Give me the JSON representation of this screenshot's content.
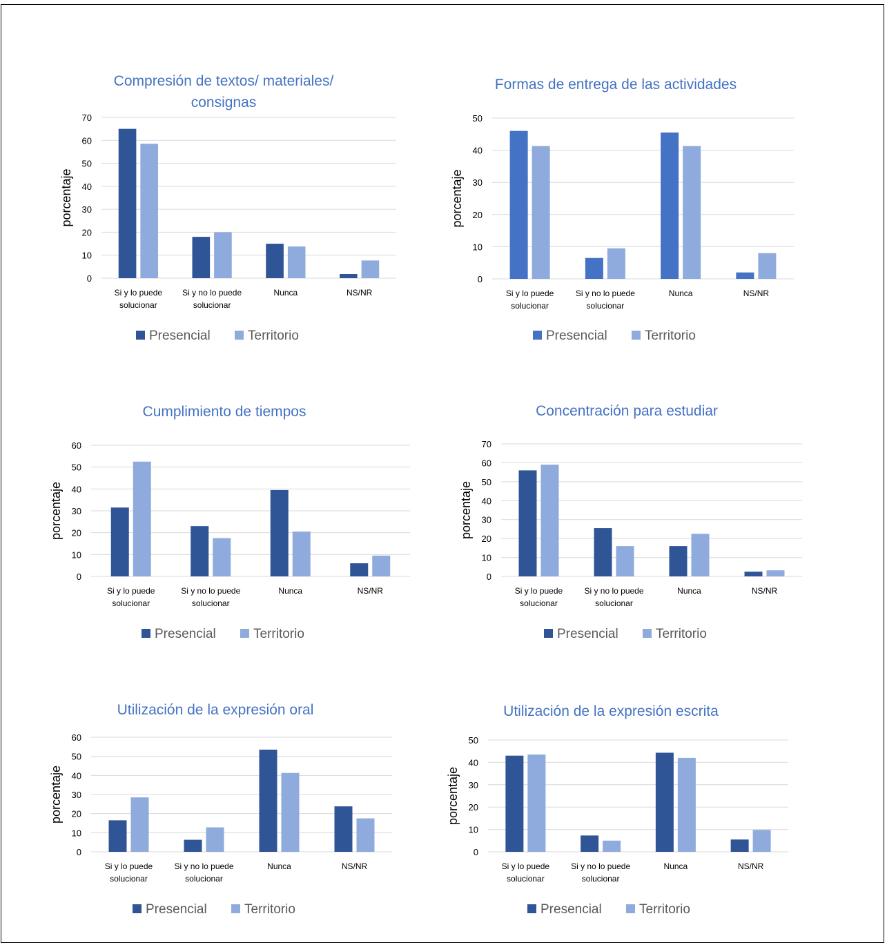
{
  "chart_data": [
    {
      "type": "bar",
      "title": "Compresión de textos/ materiales/ consignas",
      "ylabel": "porcentaje",
      "ylim": [
        0,
        70
      ],
      "yticks": [
        0,
        10,
        20,
        30,
        40,
        50,
        60,
        70
      ],
      "categories": [
        "Si y lo puede solucionar",
        "Si y  no lo puede solucionar",
        "Nunca",
        "NS/NR"
      ],
      "series": [
        {
          "name": "Presencial",
          "color": "#2F5597",
          "values": [
            65,
            18,
            15,
            1.8
          ]
        },
        {
          "name": "Territorio",
          "color": "#8FAADC",
          "values": [
            58.5,
            20,
            13.8,
            7.7
          ]
        }
      ],
      "legend": "bottom",
      "grid": true
    },
    {
      "type": "bar",
      "title": "Formas de entrega de las actividades",
      "ylabel": "porcentaje",
      "ylim": [
        0,
        50
      ],
      "yticks": [
        0,
        10,
        20,
        30,
        40,
        50
      ],
      "categories": [
        "Si y lo puede solucionar",
        "Si y  no lo puede solucionar",
        "Nunca",
        "NS/NR"
      ],
      "series": [
        {
          "name": "Presencial",
          "color": "#4472C4",
          "values": [
            46,
            6.5,
            45.5,
            2
          ]
        },
        {
          "name": "Territorio",
          "color": "#8FAADC",
          "values": [
            41.3,
            9.5,
            41.3,
            8
          ]
        }
      ],
      "legend": "bottom",
      "grid": true
    },
    {
      "type": "bar",
      "title": "Cumplimiento de tiempos",
      "ylabel": "porcentaje",
      "ylim": [
        0,
        60
      ],
      "yticks": [
        0,
        10,
        20,
        30,
        40,
        50,
        60
      ],
      "categories": [
        "Si y lo puede solucionar",
        "Si y  no lo puede solucionar",
        "Nunca",
        "NS/NR"
      ],
      "series": [
        {
          "name": "Presencial",
          "color": "#2F5597",
          "values": [
            31.5,
            23,
            39.5,
            6
          ]
        },
        {
          "name": "Territorio",
          "color": "#8FAADC",
          "values": [
            52.5,
            17.5,
            20.5,
            9.5
          ]
        }
      ],
      "legend": "bottom",
      "grid": true
    },
    {
      "type": "bar",
      "title": "Concentración para estudiar",
      "ylabel": "porcentaje",
      "ylim": [
        0,
        70
      ],
      "yticks": [
        0,
        10,
        20,
        30,
        40,
        50,
        60,
        70
      ],
      "categories": [
        "Si y lo puede solucionar",
        "Si y  no lo puede solucionar",
        "Nunca",
        "NS/NR"
      ],
      "series": [
        {
          "name": "Presencial",
          "color": "#2F5597",
          "values": [
            56,
            25.5,
            16,
            2.5
          ]
        },
        {
          "name": "Territorio",
          "color": "#8FAADC",
          "values": [
            59,
            16,
            22.5,
            3.2
          ]
        }
      ],
      "legend": "bottom",
      "grid": true
    },
    {
      "type": "bar",
      "title": "Utilización de la expresión oral",
      "ylabel": "porcentaje",
      "ylim": [
        0,
        60
      ],
      "yticks": [
        0,
        10,
        20,
        30,
        40,
        50,
        60
      ],
      "categories": [
        "Si y lo puede solucionar",
        "Si y  no lo puede solucionar",
        "Nunca",
        "NS/NR"
      ],
      "series": [
        {
          "name": "Presencial",
          "color": "#2F5597",
          "values": [
            16.5,
            6.3,
            53.5,
            23.8
          ]
        },
        {
          "name": "Territorio",
          "color": "#8FAADC",
          "values": [
            28.5,
            12.8,
            41.3,
            17.5
          ]
        }
      ],
      "legend": "bottom",
      "grid": true
    },
    {
      "type": "bar",
      "title": "Utilización de la expresión escrita",
      "ylabel": "porcentaje",
      "ylim": [
        0,
        50
      ],
      "yticks": [
        0,
        10,
        20,
        30,
        40,
        50
      ],
      "categories": [
        "Si y lo puede solucionar",
        "Si y  no lo puede solucionar",
        "Nunca",
        "NS/NR"
      ],
      "series": [
        {
          "name": "Presencial",
          "color": "#2F5597",
          "values": [
            43,
            7.3,
            44.3,
            5.5
          ]
        },
        {
          "name": "Territorio",
          "color": "#8FAADC",
          "values": [
            43.5,
            5,
            42,
            9.8
          ]
        }
      ],
      "legend": "bottom",
      "grid": true
    }
  ]
}
